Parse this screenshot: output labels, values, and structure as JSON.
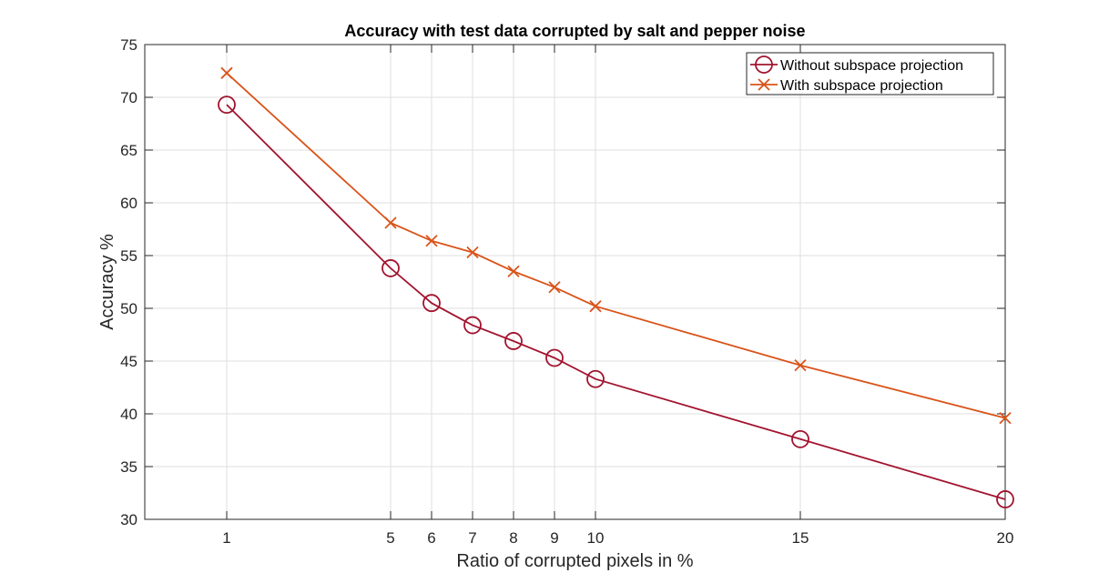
{
  "chart_data": {
    "type": "line",
    "title": "Accuracy with test data corrupted by salt and pepper noise",
    "xlabel": "Ratio of corrupted pixels in %",
    "ylabel": "Accuracy %",
    "xlim": [
      -1,
      20
    ],
    "ylim": [
      30,
      75
    ],
    "xticks": [
      1,
      5,
      6,
      7,
      8,
      9,
      10,
      15,
      20
    ],
    "yticks": [
      30,
      35,
      40,
      45,
      50,
      55,
      60,
      65,
      70,
      75
    ],
    "grid": true,
    "legend_position": "top-right",
    "x": [
      1,
      5,
      6,
      7,
      8,
      9,
      10,
      15,
      20
    ],
    "series": [
      {
        "name": "Without subspace projection",
        "marker": "circle",
        "color": "#A2142F",
        "values": [
          69.3,
          53.8,
          50.5,
          48.4,
          46.9,
          45.3,
          43.3,
          37.6,
          31.9
        ]
      },
      {
        "name": "With subspace projection",
        "marker": "x",
        "color": "#D95319",
        "values": [
          72.3,
          58.1,
          56.4,
          55.3,
          53.5,
          52.0,
          50.2,
          44.6,
          39.6
        ]
      }
    ]
  }
}
